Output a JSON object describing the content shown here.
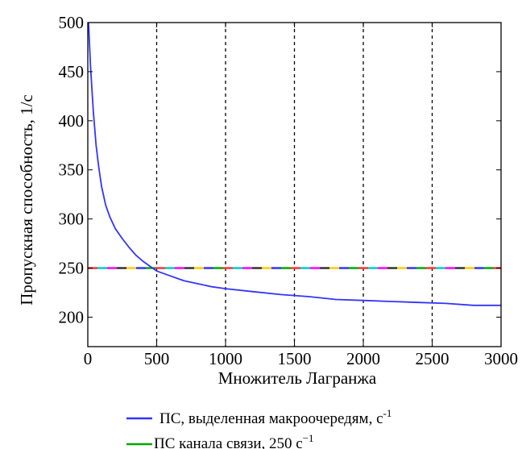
{
  "chart_data": {
    "type": "line",
    "title": "",
    "xlabel": "Множитель Лагранжа",
    "ylabel": "Пропускная способность, 1/с",
    "xlim": [
      0,
      3000
    ],
    "ylim": [
      170,
      500
    ],
    "xticks": [
      "0",
      "500",
      "1000",
      "1500",
      "2000",
      "2500",
      "3000"
    ],
    "yticks": [
      "200",
      "250",
      "300",
      "350",
      "400",
      "450",
      "500"
    ],
    "vertical_dashed_lines_x": [
      500,
      1000,
      1500,
      2000,
      2500
    ],
    "grid": false,
    "legend_position": "bottom",
    "series": [
      {
        "name": "ПС, выделенная макроочередям, с-1",
        "color": "#3333ff",
        "x": [
          5,
          20,
          40,
          60,
          80,
          100,
          130,
          160,
          200,
          250,
          300,
          350,
          400,
          450,
          500,
          600,
          700,
          800,
          900,
          1000,
          1200,
          1400,
          1600,
          1800,
          2000,
          2200,
          2400,
          2600,
          2800,
          3000
        ],
        "y": [
          500,
          455,
          410,
          375,
          352,
          333,
          314,
          302,
          290,
          280,
          271,
          263,
          257,
          252,
          247,
          242,
          237,
          234,
          231,
          229,
          226,
          223,
          221,
          218,
          217,
          216,
          215,
          214,
          212,
          212
        ]
      },
      {
        "name": "ПС канала связи, 250 с−1",
        "color": "#00aa00",
        "x": [
          0,
          3000
        ],
        "y": [
          250,
          250
        ]
      }
    ],
    "hline_segment_colors": [
      "#ff3333",
      "#00cccc",
      "#ff00ff",
      "#333333",
      "#ffcc00",
      "#3333ff",
      "#00aa00"
    ]
  },
  "legend": {
    "entry1_main": "ПС, выделенная макроочередям, с",
    "entry1_sup": "-1",
    "entry2_main": "ПС канала связи, 250 с",
    "entry2_sup": "−1"
  }
}
